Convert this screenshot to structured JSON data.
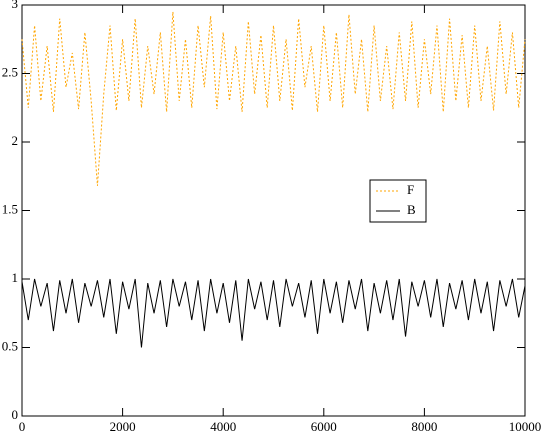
{
  "chart_data": {
    "type": "line",
    "x": [
      0,
      125,
      250,
      375,
      500,
      625,
      750,
      875,
      1000,
      1125,
      1250,
      1375,
      1500,
      1625,
      1750,
      1875,
      2000,
      2125,
      2250,
      2375,
      2500,
      2625,
      2750,
      2875,
      3000,
      3125,
      3250,
      3375,
      3500,
      3625,
      3750,
      3875,
      4000,
      4125,
      4250,
      4375,
      4500,
      4625,
      4750,
      4875,
      5000,
      5125,
      5250,
      5375,
      5500,
      5625,
      5750,
      5875,
      6000,
      6125,
      6250,
      6375,
      6500,
      6625,
      6750,
      6875,
      7000,
      7125,
      7250,
      7375,
      7500,
      7625,
      7750,
      7875,
      8000,
      8125,
      8250,
      8375,
      8500,
      8625,
      8750,
      8875,
      9000,
      9125,
      9250,
      9375,
      9500,
      9625,
      9750,
      9875,
      10000
    ],
    "series": [
      {
        "name": "F",
        "color": "#ffa500",
        "dash": true,
        "values": [
          2.75,
          2.25,
          2.85,
          2.3,
          2.7,
          2.22,
          2.9,
          2.4,
          2.65,
          2.24,
          2.8,
          2.3,
          1.68,
          2.35,
          2.85,
          2.23,
          2.75,
          2.3,
          2.9,
          2.25,
          2.7,
          2.35,
          2.8,
          2.22,
          2.95,
          2.3,
          2.75,
          2.25,
          2.85,
          2.4,
          2.92,
          2.24,
          2.8,
          2.3,
          2.7,
          2.22,
          2.88,
          2.35,
          2.78,
          2.25,
          2.85,
          2.3,
          2.75,
          2.23,
          2.9,
          2.4,
          2.7,
          2.22,
          2.85,
          2.3,
          2.8,
          2.25,
          2.93,
          2.35,
          2.75,
          2.22,
          2.85,
          2.3,
          2.7,
          2.24,
          2.8,
          2.3,
          2.88,
          2.25,
          2.75,
          2.35,
          2.85,
          2.22,
          2.9,
          2.3,
          2.78,
          2.25,
          2.85,
          2.3,
          2.7,
          2.23,
          2.88,
          2.35,
          2.8,
          2.25,
          2.75
        ]
      },
      {
        "name": "B",
        "color": "#000000",
        "dash": false,
        "values": [
          0.98,
          0.7,
          1.0,
          0.8,
          0.97,
          0.62,
          0.99,
          0.75,
          1.0,
          0.68,
          0.97,
          0.8,
          0.99,
          0.72,
          1.0,
          0.6,
          0.98,
          0.78,
          1.0,
          0.5,
          0.97,
          0.75,
          0.99,
          0.65,
          1.0,
          0.8,
          0.98,
          0.7,
          0.99,
          0.62,
          1.0,
          0.75,
          0.97,
          0.68,
          0.99,
          0.55,
          1.0,
          0.78,
          0.98,
          0.7,
          0.99,
          0.65,
          1.0,
          0.8,
          0.97,
          0.72,
          0.99,
          0.6,
          1.0,
          0.75,
          0.98,
          0.68,
          0.99,
          0.78,
          1.0,
          0.62,
          0.97,
          0.75,
          0.99,
          0.7,
          1.0,
          0.58,
          0.98,
          0.8,
          0.99,
          0.72,
          1.0,
          0.65,
          0.97,
          0.78,
          0.99,
          0.7,
          1.0,
          0.75,
          0.98,
          0.62,
          0.99,
          0.8,
          1.0,
          0.72,
          0.95
        ]
      }
    ],
    "xlim": [
      0,
      10000
    ],
    "xticks": [
      0,
      2000,
      4000,
      6000,
      8000,
      10000
    ],
    "ylim": [
      0,
      3
    ],
    "yticks": [
      0,
      0.5,
      1,
      1.5,
      2,
      2.5,
      3
    ]
  }
}
